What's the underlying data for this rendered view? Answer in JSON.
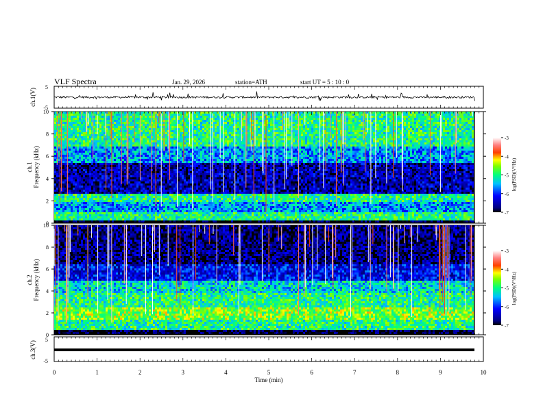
{
  "header": {
    "title": "VLF  Spectra",
    "date": "Jan. 29, 2026",
    "station": "station=ATH",
    "start": "start  UT  =   5  : 10 : 0"
  },
  "chart_data": [
    {
      "type": "line",
      "panel": "ch1-waveform",
      "ylabel": "ch.1(V)",
      "ylim": [
        -5,
        5
      ],
      "yticks": [
        "5",
        "-5"
      ],
      "x_range_min": [
        0,
        9.8
      ],
      "baseline": 0,
      "description_values": "noisy waveform around 0 V with spikes up to about +3 V and down to about -2 V"
    },
    {
      "type": "heatmap",
      "panel": "ch1-spectrogram",
      "ylabel": "ch.1\nFrequency  (kHz)",
      "ylim": [
        0,
        10
      ],
      "yticks": [
        "0",
        "2",
        "4",
        "6",
        "8",
        "10"
      ],
      "colorbar": {
        "label": "log(PSD)(V²/Hz)",
        "ticks": [
          "-3",
          "-4",
          "-5",
          "-6",
          "-7"
        ],
        "range": [
          -7,
          -3
        ]
      },
      "bands": [
        {
          "f": [
            0.0,
            0.3
          ],
          "level": -7
        },
        {
          "f": [
            0.3,
            1.0
          ],
          "level": -5
        },
        {
          "f": [
            1.0,
            2.0
          ],
          "level": -5.6
        },
        {
          "f": [
            2.0,
            2.6
          ],
          "level": -5.0
        },
        {
          "f": [
            2.6,
            5.5
          ],
          "level": -6.5
        },
        {
          "f": [
            5.5,
            7.0
          ],
          "level": -5.6
        },
        {
          "f": [
            7.0,
            10.0
          ],
          "level": -5.0
        }
      ],
      "x_range_min": [
        0,
        9.8
      ]
    },
    {
      "type": "heatmap",
      "panel": "ch2-spectrogram",
      "ylabel": "ch.2\nFrequency  (kHz)",
      "ylim": [
        0,
        10
      ],
      "yticks": [
        "0",
        "2",
        "4",
        "6",
        "8",
        "10"
      ],
      "colorbar": {
        "label": "log(PSD)(V²/Hz)",
        "ticks": [
          "-3",
          "-4",
          "-5",
          "-6",
          "-7"
        ],
        "range": [
          -7,
          -3
        ]
      },
      "bands": [
        {
          "f": [
            0.0,
            0.4
          ],
          "level": -7
        },
        {
          "f": [
            0.4,
            1.5
          ],
          "level": -5.0
        },
        {
          "f": [
            1.5,
            2.5
          ],
          "level": -4.6
        },
        {
          "f": [
            2.5,
            3.8
          ],
          "level": -5.0
        },
        {
          "f": [
            3.8,
            5.0
          ],
          "level": -5.3
        },
        {
          "f": [
            5.0,
            6.5
          ],
          "level": -6.2
        },
        {
          "f": [
            6.5,
            10.0
          ],
          "level": -6.7
        }
      ],
      "x_range_min": [
        0,
        9.8
      ]
    },
    {
      "type": "line",
      "panel": "ch3-waveform",
      "ylabel": "ch.3(V)",
      "ylim": [
        -5,
        5
      ],
      "yticks": [
        "5",
        "-5"
      ],
      "baseline": 0,
      "xlabel": "Time  (min)",
      "xlim": [
        0,
        10
      ],
      "xticks": [
        "0",
        "1",
        "2",
        "3",
        "4",
        "5",
        "6",
        "7",
        "8",
        "9",
        "10"
      ],
      "x_range_min": [
        0,
        9.8
      ]
    }
  ]
}
